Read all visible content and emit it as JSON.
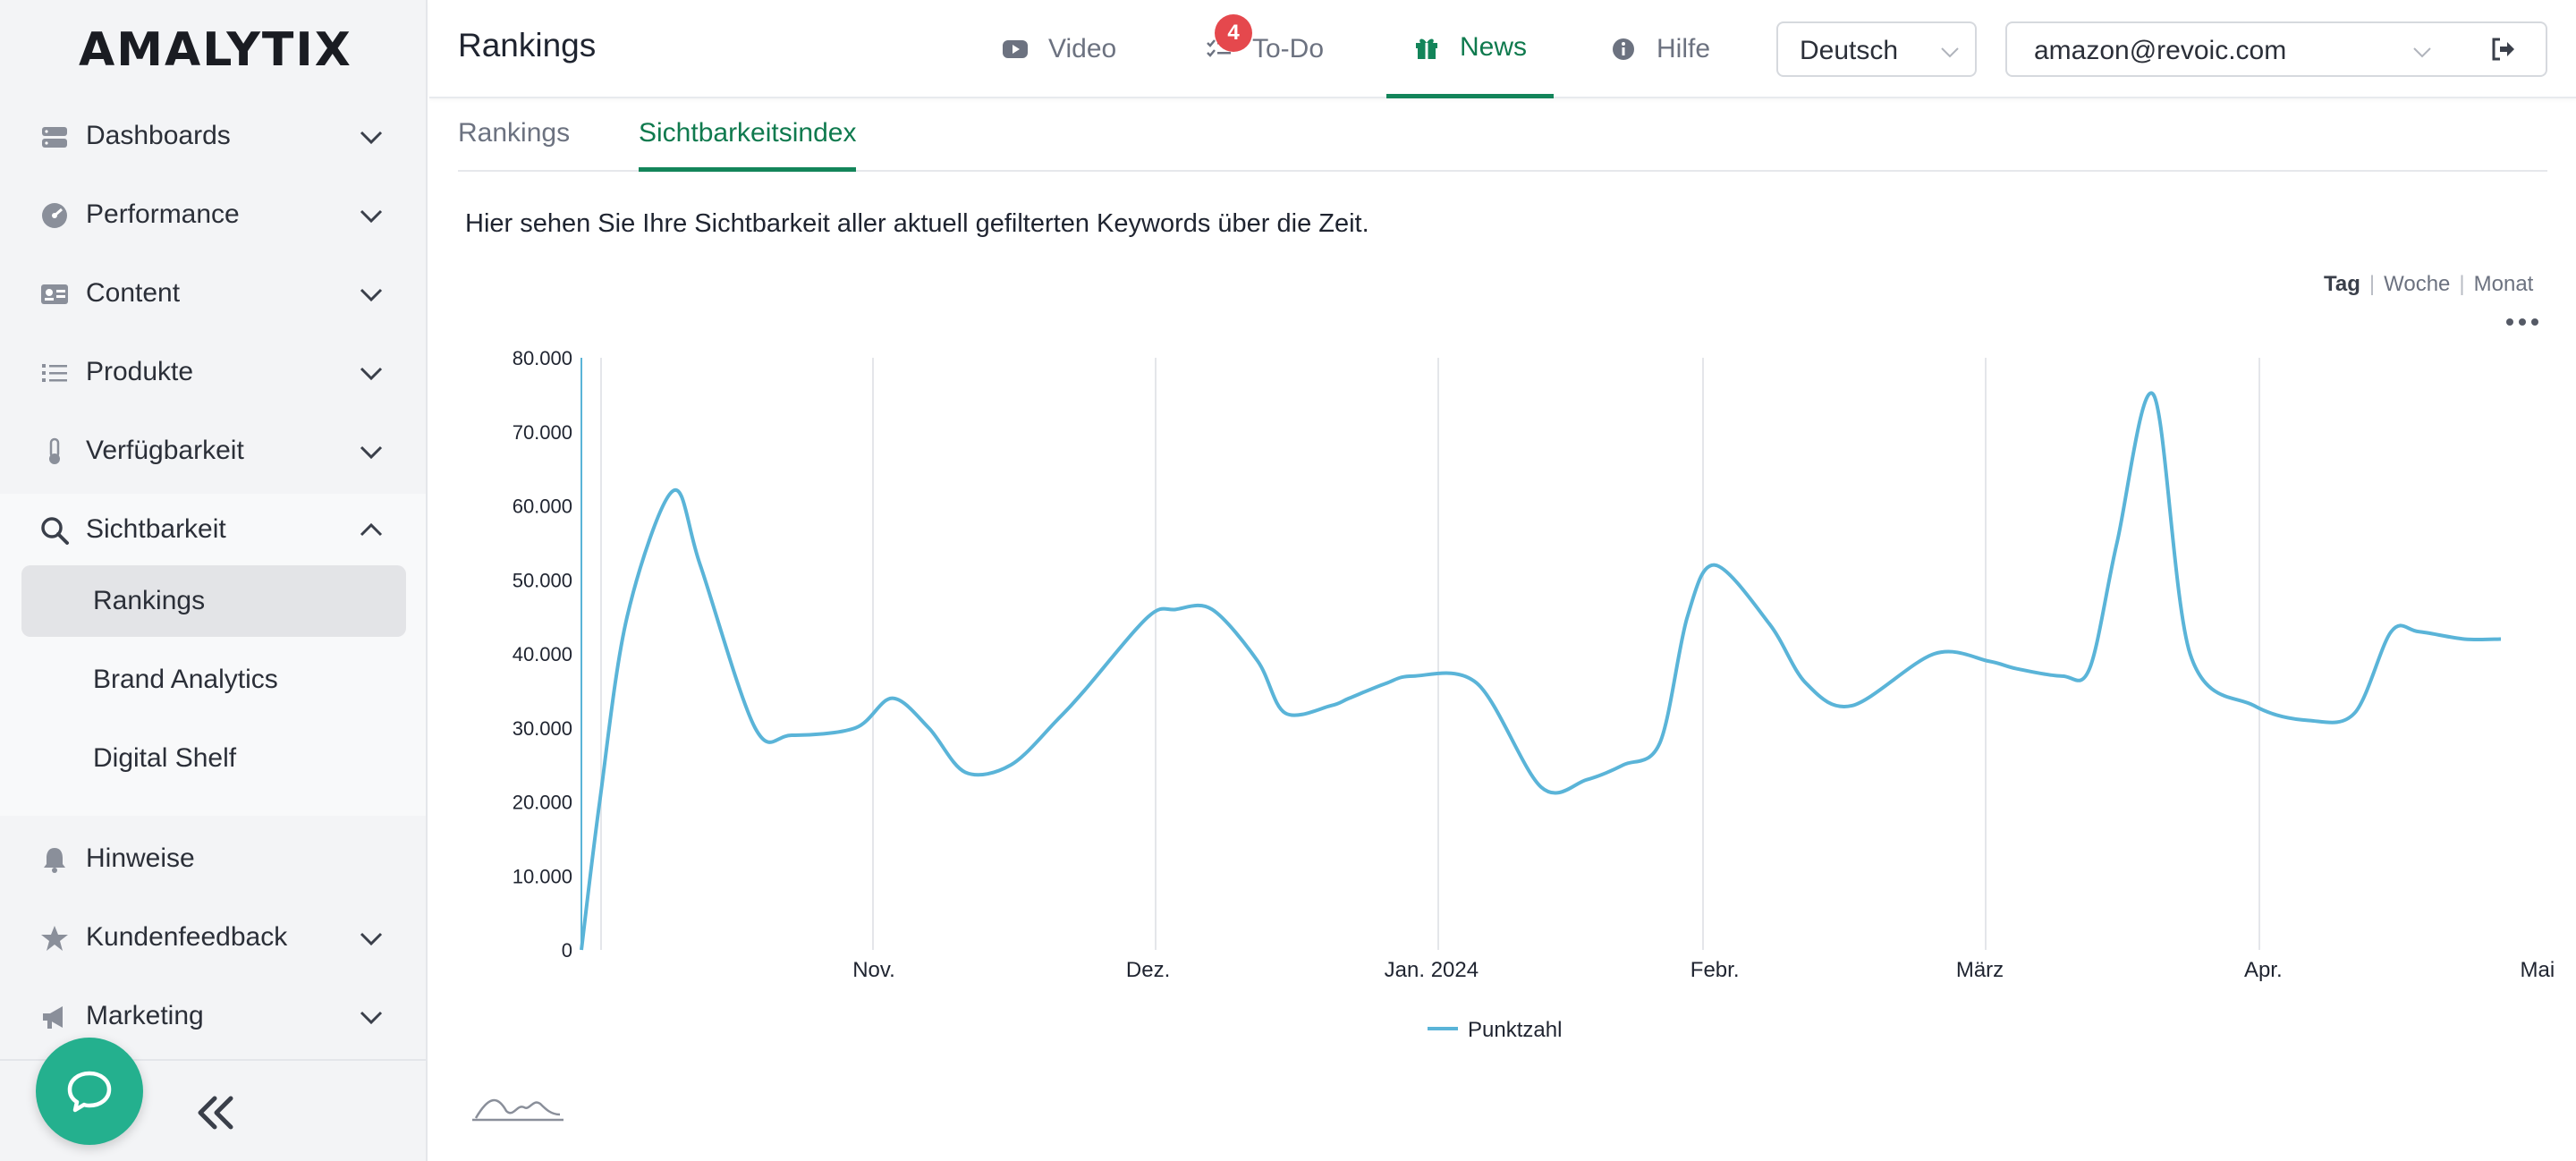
{
  "app": {
    "logo": "AMALYTIX"
  },
  "sidebar": {
    "items": [
      {
        "label": "Dashboards",
        "icon": "server-icon",
        "expanded": false
      },
      {
        "label": "Performance",
        "icon": "gauge-icon",
        "expanded": false
      },
      {
        "label": "Content",
        "icon": "id-card-icon",
        "expanded": false
      },
      {
        "label": "Produkte",
        "icon": "list-icon",
        "expanded": false
      },
      {
        "label": "Verfügbarkeit",
        "icon": "thermometer-icon",
        "expanded": false
      },
      {
        "label": "Sichtbarkeit",
        "icon": "search-icon",
        "expanded": true
      },
      {
        "label": "Hinweise",
        "icon": "bell-icon"
      },
      {
        "label": "Kundenfeedback",
        "icon": "star-icon",
        "expanded": false
      },
      {
        "label": "Marketing",
        "icon": "megaphone-icon",
        "expanded": false
      }
    ],
    "sub_items": [
      {
        "label": "Rankings",
        "active": true
      },
      {
        "label": "Brand Analytics",
        "active": false
      },
      {
        "label": "Digital Shelf",
        "active": false
      }
    ]
  },
  "header": {
    "title": "Rankings",
    "nav": [
      {
        "label": "Video",
        "icon": "youtube-icon",
        "active": false
      },
      {
        "label": "To-Do",
        "icon": "checklist-icon",
        "active": false,
        "badge": "4"
      },
      {
        "label": "News",
        "icon": "gift-icon",
        "active": true
      },
      {
        "label": "Hilfe",
        "icon": "info-icon",
        "active": false
      }
    ],
    "language": "Deutsch",
    "account": "amazon@revoic.com"
  },
  "tabs": [
    {
      "label": "Rankings",
      "active": false
    },
    {
      "label": "Sichtbarkeitsindex",
      "active": true
    }
  ],
  "description": "Hier sehen Sie Ihre Sichtbarkeit aller aktuell gefilterten Keywords über die Zeit.",
  "period": {
    "options": [
      "Tag",
      "Woche",
      "Monat"
    ],
    "selected": "Tag"
  },
  "colors": {
    "accent": "#13855a",
    "line": "#5ab4d8",
    "badge": "#e5484d",
    "chat": "#24b08e"
  },
  "chart_data": {
    "type": "line",
    "series": [
      {
        "name": "Punktzahl",
        "x": [
          "2023-10-15",
          "2023-10-17",
          "2023-10-20",
          "2023-10-25",
          "2023-10-28",
          "2023-11-03",
          "2023-11-07",
          "2023-11-14",
          "2023-11-18",
          "2023-11-22",
          "2023-11-26",
          "2023-12-01",
          "2023-12-06",
          "2023-12-09",
          "2023-12-16",
          "2023-12-19",
          "2023-12-23",
          "2023-12-28",
          "2023-12-31",
          "2024-01-05",
          "2024-01-07",
          "2024-01-11",
          "2024-01-14",
          "2024-01-21",
          "2024-01-28",
          "2024-02-02",
          "2024-02-06",
          "2024-02-10",
          "2024-02-13",
          "2024-02-16",
          "2024-02-22",
          "2024-02-26",
          "2024-03-02",
          "2024-03-11",
          "2024-03-17",
          "2024-03-20",
          "2024-03-25",
          "2024-03-28",
          "2024-03-31",
          "2024-04-04",
          "2024-04-08",
          "2024-04-15",
          "2024-04-21",
          "2024-04-26",
          "2024-04-30",
          "2024-05-03",
          "2024-05-08",
          "2024-05-12"
        ],
        "values": [
          0,
          20000,
          45000,
          62000,
          52000,
          30000,
          29000,
          30000,
          34000,
          30000,
          24000,
          25000,
          31000,
          35000,
          45000,
          46000,
          46000,
          39000,
          32000,
          33000,
          34000,
          36000,
          37000,
          36000,
          22000,
          23000,
          25000,
          28000,
          45000,
          52000,
          44000,
          36000,
          33000,
          40000,
          39000,
          38000,
          37000,
          38000,
          55000,
          75000,
          40000,
          33000,
          31000,
          32000,
          43000,
          43000,
          42000,
          42000
        ]
      }
    ],
    "xticks": [
      "Nov.",
      "Dez.",
      "Jan. 2024",
      "Febr.",
      "März",
      "Apr.",
      "Mai"
    ],
    "xtick_dates": [
      "2023-11-01",
      "2023-12-01",
      "2024-01-01",
      "2024-02-01",
      "2024-03-01",
      "2024-04-01",
      "2024-05-01"
    ],
    "yticks": [
      "0",
      "10.000",
      "20.000",
      "30.000",
      "40.000",
      "50.000",
      "60.000",
      "70.000",
      "80.000"
    ],
    "ylim": [
      0,
      80000
    ],
    "xlim": [
      "2023-10-15",
      "2024-05-12"
    ],
    "legend": "bottom-center",
    "grid": "vertical"
  }
}
